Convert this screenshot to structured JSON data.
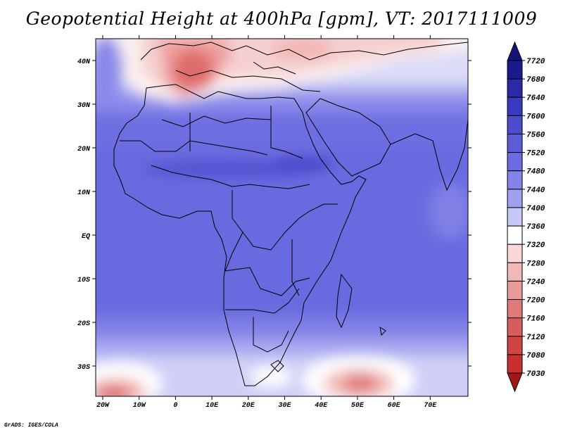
{
  "title": "Geopotential Height at 400hPa [gpm], VT: 2017111009",
  "footer": "GrADS: IGES/COLA",
  "map": {
    "lon_labels": [
      "20W",
      "10W",
      "0",
      "10E",
      "20E",
      "30E",
      "40E",
      "50E",
      "60E",
      "70E"
    ],
    "lat_labels": [
      "40N",
      "30N",
      "20N",
      "10N",
      "EQ",
      "10S",
      "20S",
      "30S"
    ]
  },
  "colorbar": {
    "labels": [
      "7720",
      "7680",
      "7640",
      "7600",
      "7560",
      "7520",
      "7480",
      "7440",
      "7400",
      "7360",
      "7320",
      "7280",
      "7240",
      "7200",
      "7160",
      "7120",
      "7080",
      "7030"
    ],
    "colors": [
      "#1a1a8c",
      "#2a2aa8",
      "#3a3ac0",
      "#4c4ccf",
      "#5c5cd8",
      "#6c6ce0",
      "#8484e8",
      "#a0a0ef",
      "#c8c8f6",
      "#ffffff",
      "#f8d8d8",
      "#f0b8b8",
      "#e89a9a",
      "#e07a7a",
      "#d85c5c",
      "#d04444",
      "#c83030",
      "#b82020"
    ],
    "top_arrow_color": "#14147a",
    "bottom_arrow_color": "#a01818"
  }
}
